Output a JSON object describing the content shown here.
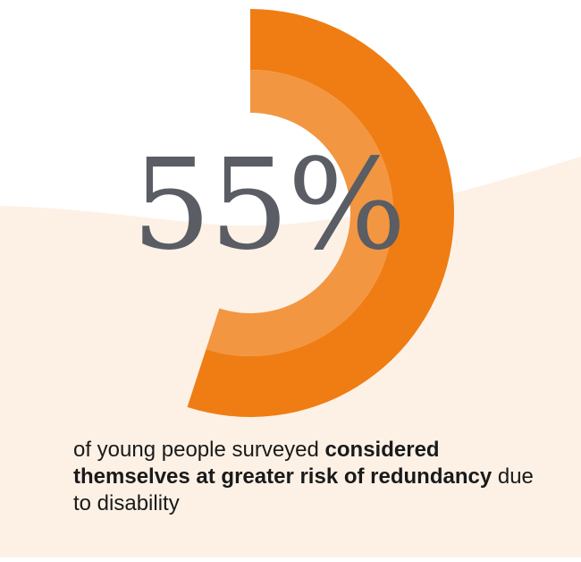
{
  "stat": {
    "value_text": "55%",
    "percent": 55
  },
  "caption": {
    "part1": "of young people surveyed ",
    "bold1": "considered themselves at greater risk of redundancy",
    "part2": " due to disability"
  },
  "colors": {
    "ring_outer": "#ef7d13",
    "ring_inner": "#f29641",
    "background_wave": "#fdf1e6",
    "number": "#5a5d63",
    "caption_text": "#1a1a1a"
  }
}
